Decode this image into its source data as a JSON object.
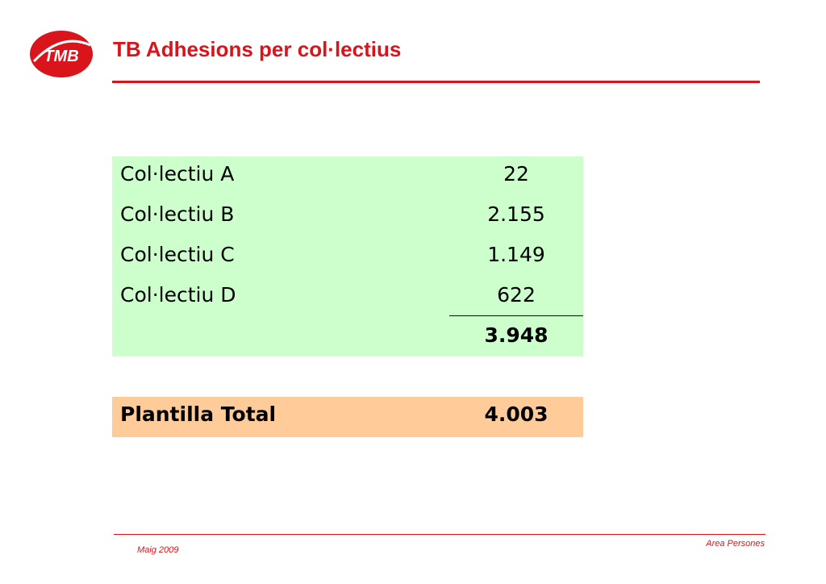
{
  "logo": {
    "text": "TMB"
  },
  "header": {
    "title": "TB Adhesions per col·lectius"
  },
  "table": {
    "rows": [
      {
        "label": "Col·lectiu A",
        "value": "22"
      },
      {
        "label": "Col·lectiu B",
        "value": "2.155"
      },
      {
        "label": "Col·lectiu C",
        "value": "1.149"
      },
      {
        "label": "Col·lectiu D",
        "value": "622"
      }
    ],
    "subtotal": "3.948",
    "total": {
      "label": "Plantilla Total",
      "value": "4.003"
    }
  },
  "footer": {
    "date": "Maig 2009",
    "department": "Area Persones"
  },
  "colors": {
    "brand_red": "#d9141b",
    "green_bg": "#ccffcc",
    "orange_bg": "#ffcc99"
  }
}
